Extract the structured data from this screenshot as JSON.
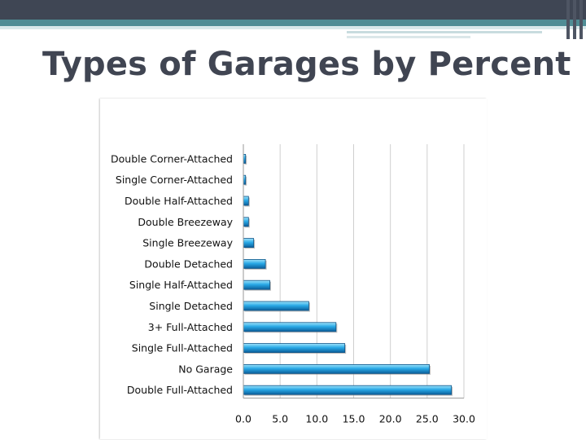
{
  "slide": {
    "title": "Types of Garages by Percent"
  },
  "colors": {
    "bar_top": "#9fe3fb",
    "bar_mid": "#29a9e6",
    "bar_bottom": "#0b5e9b",
    "topbar": "#3f4654",
    "accent": "#4f8d95"
  },
  "chart_data": {
    "type": "bar",
    "orientation": "horizontal",
    "categories": [
      "Double Corner-Attached",
      "Single Corner-Attached",
      "Double Half-Attached",
      "Double Breezeway",
      "Single Breezeway",
      "Double Detached",
      "Single Half-Attached",
      "Single Detached",
      "3+ Full-Attached",
      "Single Full-Attached",
      "No Garage",
      "Double Full-Attached"
    ],
    "values": [
      0.3,
      0.3,
      0.7,
      0.7,
      1.4,
      3.0,
      3.6,
      8.9,
      12.6,
      13.8,
      25.3,
      28.3
    ],
    "xlim": [
      0,
      30
    ],
    "x_ticks": [
      "0.0",
      "5.0",
      "10.0",
      "15.0",
      "20.0",
      "25.0",
      "30.0"
    ],
    "grid": true,
    "legend": "none"
  }
}
